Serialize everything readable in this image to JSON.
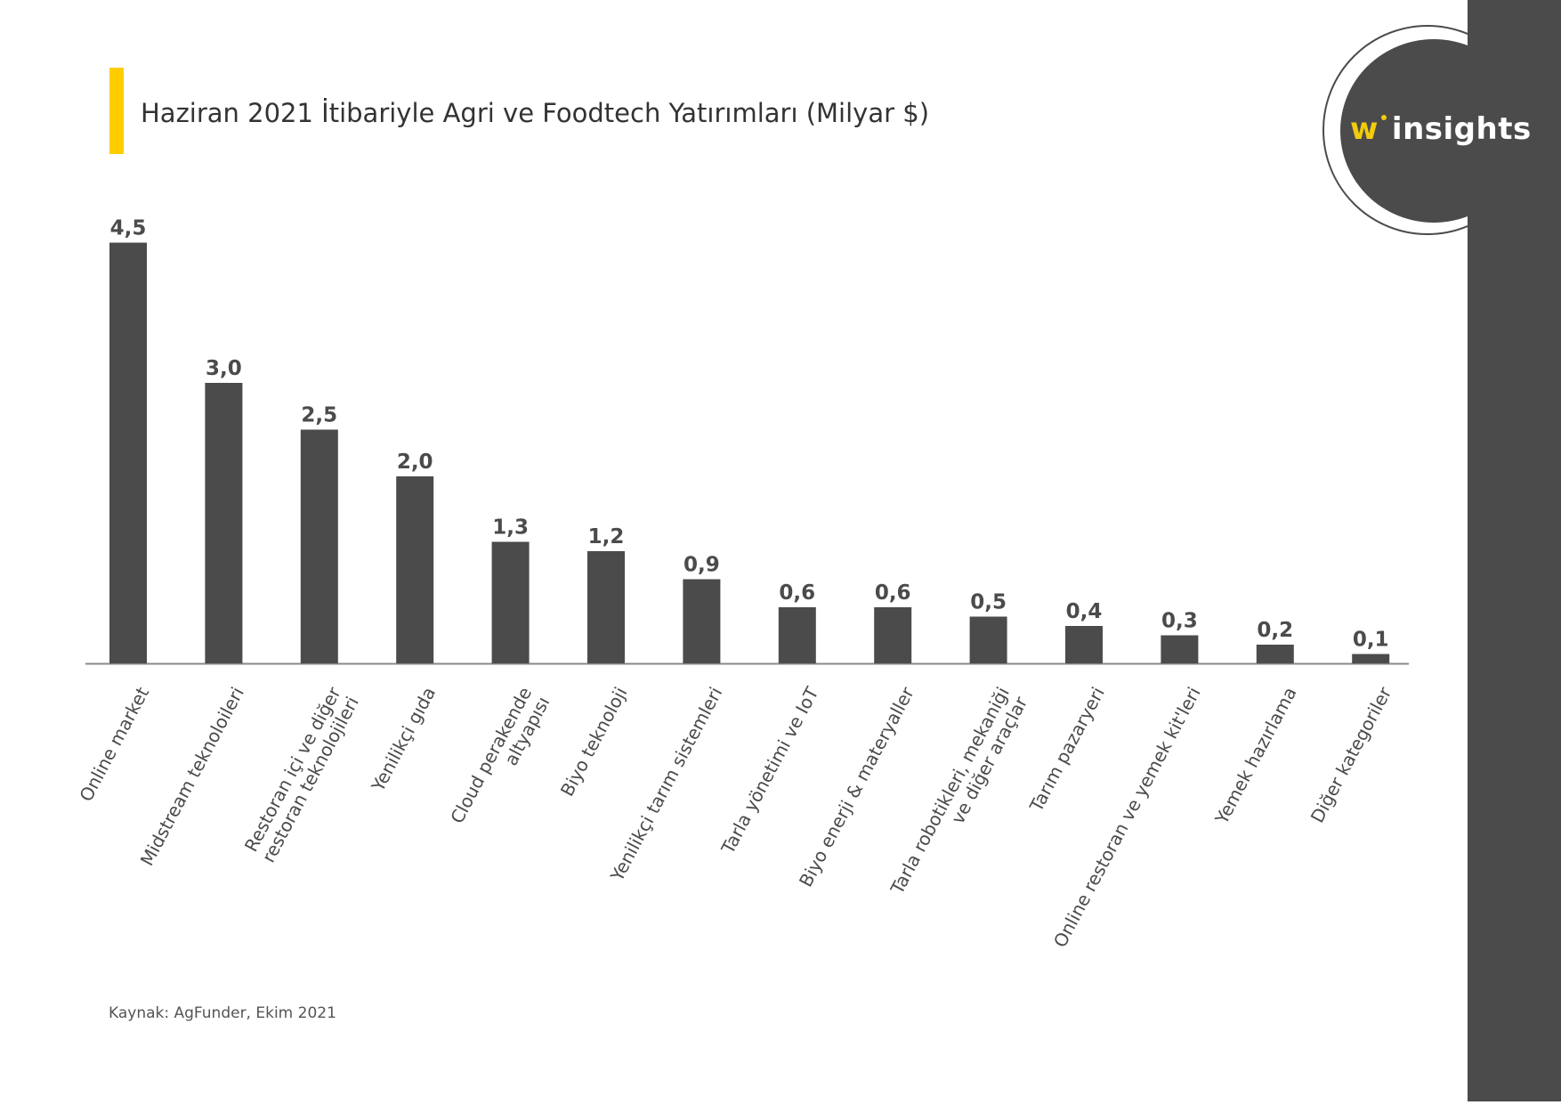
{
  "title": "Haziran 2021 İtibariyle Agri ve Foodtech Yatırımları (Milyar $)",
  "source": "Kaynak: AgFunder, Ekim 2021",
  "logo": {
    "prefix": "w",
    "text": "insights"
  },
  "colors": {
    "bar": "#4b4b4b",
    "accent": "#ffcc00",
    "axis": "#888888"
  },
  "chart_data": {
    "type": "bar",
    "title": "Haziran 2021 İtibariyle Agri ve Foodtech Yatırımları (Milyar $)",
    "xlabel": "",
    "ylabel": "",
    "ylim": [
      0,
      4.5
    ],
    "grid": false,
    "categories": [
      "Online market",
      "Midstream teknoloileri",
      "Restoran içi ve diğer\nrestoran teknolojileri",
      "Yenilikçi gıda",
      "Cloud perakende\naltyapısı",
      "Biyo teknoloji",
      "Yenilikçi tarım sistemleri",
      "Tarla yönetimi ve IoT",
      "Biyo enerji & materyaller",
      "Tarla robotikleri, mekaniği\nve diğer araçlar",
      "Tarım pazaryeri",
      "Online restoran ve yemek kit'leri",
      "Yemek hazırlama",
      "Diğer kategoriler"
    ],
    "values": [
      4.5,
      3.0,
      2.5,
      2.0,
      1.3,
      1.2,
      0.9,
      0.6,
      0.6,
      0.5,
      0.4,
      0.3,
      0.2,
      0.1
    ],
    "value_labels": [
      "4,5",
      "3,0",
      "2,5",
      "2,0",
      "1,3",
      "1,2",
      "0,9",
      "0,6",
      "0,6",
      "0,5",
      "0,4",
      "0,3",
      "0,2",
      "0,1"
    ]
  }
}
